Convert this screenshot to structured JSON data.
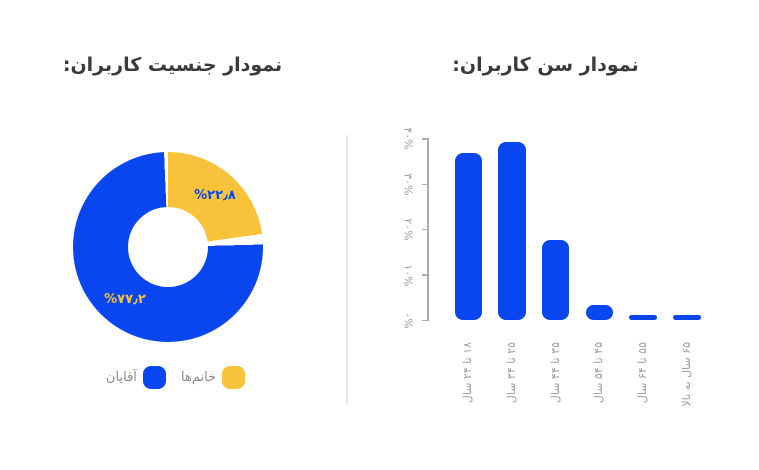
{
  "page": {
    "background": "#ffffff"
  },
  "colors": {
    "blue": "#0946f0",
    "yellow": "#f8c33a",
    "title_text": "#3a3a3a",
    "legend_text": "#8c8c8c",
    "axis_text": "#9c9c9c",
    "axis_line": "#ababab",
    "divider": "#e7e7e7"
  },
  "chart_data": [
    {
      "type": "pie",
      "donut": true,
      "title": "نمودار جنسیت کاربران:",
      "legend_position": "bottom",
      "slices": [
        {
          "label": "آقایان",
          "value": 77.2,
          "display": "%۷۷٫۲",
          "color": "#0946f0"
        },
        {
          "label": "خانم‌ها",
          "value": 22.8,
          "display": "%۲۲٫۸",
          "color": "#f8c33a"
        }
      ]
    },
    {
      "type": "bar",
      "title": "نمودار سن کاربران:",
      "categories": [
        "۱۸ تا ۲۴ سال",
        "۲۵ تا ۳۴ سال",
        "۳۵ تا ۴۴ سال",
        "۴۵ تا ۵۴ سال",
        "۵۵ تا ۶۴ سال",
        "۶۵ سال به بالا"
      ],
      "values": [
        36.9,
        39.3,
        17.7,
        3.5,
        1.2,
        1.2
      ],
      "bar_color": "#0946f0",
      "xlabel": "",
      "ylabel": "",
      "ylim": [
        0,
        40
      ],
      "grid": false,
      "ytick_values": [
        0,
        10,
        20,
        30,
        40
      ],
      "ytick_labels": [
        "۰%",
        "۱۰%",
        "۲۰%",
        "۳۰%",
        "۴۰%"
      ]
    }
  ]
}
